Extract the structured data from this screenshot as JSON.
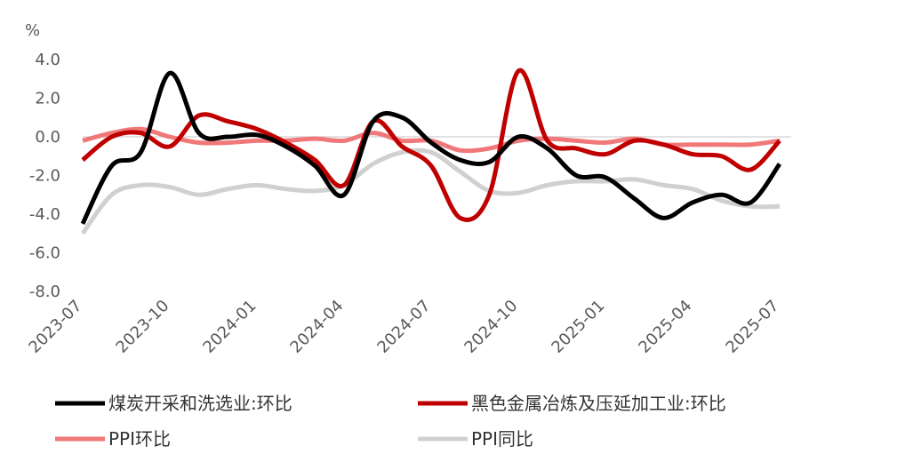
{
  "chart_data": {
    "type": "line",
    "y_label": "%",
    "categories": [
      "2023-07",
      null,
      null,
      "2023-10",
      null,
      null,
      "2024-01",
      null,
      null,
      "2024-04",
      null,
      null,
      "2024-07",
      null,
      null,
      "2024-10",
      null,
      null,
      "2025-01",
      null,
      null,
      "2025-04",
      null,
      null,
      "2025-07"
    ],
    "series": [
      {
        "name": "煤炭开采和洗选业:环比",
        "color": "#000000",
        "values": [
          -4.5,
          -1.5,
          -0.8,
          3.3,
          0.2,
          0.0,
          0.1,
          -0.5,
          -1.5,
          -3.0,
          0.8,
          1.0,
          -0.3,
          -1.2,
          -1.3,
          0.0,
          -0.6,
          -2.0,
          -2.1,
          -3.2,
          -4.2,
          -3.4,
          -3.0,
          -3.4,
          -1.4
        ]
      },
      {
        "name": "黑色金属冶炼及压延加工业:环比",
        "color": "#c00000",
        "values": [
          -1.2,
          0.0,
          0.2,
          -0.5,
          1.1,
          0.8,
          0.4,
          -0.3,
          -1.2,
          -2.5,
          0.8,
          -0.5,
          -1.5,
          -4.2,
          -3.0,
          3.4,
          -0.2,
          -0.6,
          -0.9,
          -0.2,
          -0.4,
          -0.9,
          -1.0,
          -1.7,
          -0.2
        ]
      },
      {
        "name": "PPI环比",
        "color": "#f07878",
        "values": [
          -0.2,
          0.2,
          0.4,
          0.0,
          -0.3,
          -0.3,
          -0.2,
          -0.2,
          -0.1,
          -0.2,
          0.2,
          -0.2,
          -0.2,
          -0.7,
          -0.6,
          -0.2,
          -0.1,
          -0.2,
          -0.3,
          -0.1,
          -0.4,
          -0.4,
          -0.4,
          -0.4,
          -0.2
        ]
      },
      {
        "name": "PPI同比",
        "color": "#d0d0d0",
        "values": [
          -5.0,
          -3.0,
          -2.5,
          -2.6,
          -3.0,
          -2.7,
          -2.5,
          -2.7,
          -2.8,
          -2.5,
          -1.4,
          -0.8,
          -0.8,
          -1.8,
          -2.8,
          -2.9,
          -2.5,
          -2.3,
          -2.3,
          -2.2,
          -2.5,
          -2.7,
          -3.3,
          -3.6,
          -3.6
        ]
      }
    ],
    "ylim": [
      -8,
      4
    ],
    "yticks": [
      {
        "value": 4,
        "label": "4.0"
      },
      {
        "value": 2,
        "label": "2.0"
      },
      {
        "value": 0,
        "label": "0.0"
      },
      {
        "value": -2,
        "label": "-2.0"
      },
      {
        "value": -4,
        "label": "-4.0"
      },
      {
        "value": -6,
        "label": "-6.0"
      },
      {
        "value": -8,
        "label": "-8.0"
      }
    ]
  }
}
